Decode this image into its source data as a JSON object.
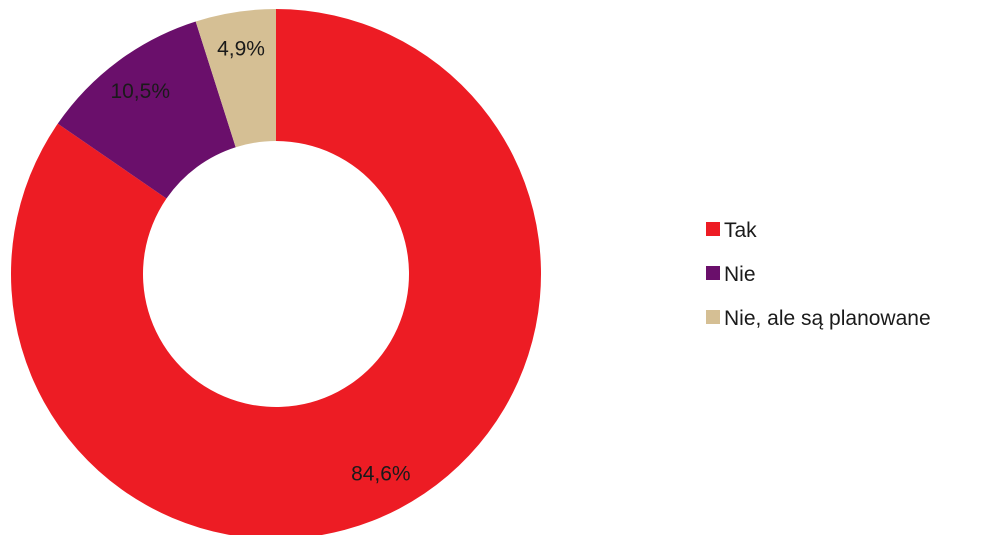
{
  "chart_data": {
    "type": "pie",
    "style": "donut",
    "title": "",
    "categories": [
      "Tak",
      "Nie",
      "Nie, ale są planowane"
    ],
    "values": [
      84.6,
      10.5,
      4.9
    ],
    "value_labels": [
      "84,6%",
      "10,5%",
      "4,9%"
    ],
    "unit": "%",
    "colors": [
      "#ed1c24",
      "#6a0f6b",
      "#d5bf94"
    ],
    "legend_position": "right",
    "start_angle": "top",
    "direction": "clockwise"
  }
}
